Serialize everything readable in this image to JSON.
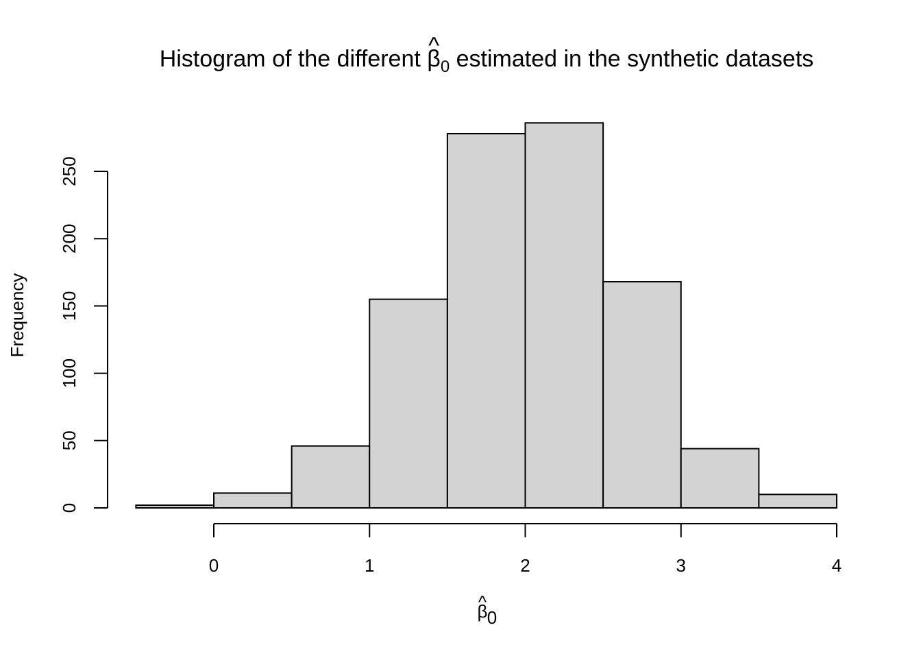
{
  "chart_data": {
    "type": "bar",
    "title": {
      "before": "Histogram of the different ",
      "symbol": "β",
      "hat": "^",
      "subscript": "0",
      "after": " estimated in the synthetic datasets"
    },
    "xlabel": {
      "symbol": "β",
      "hat": "^",
      "subscript": "0"
    },
    "ylabel": "Frequency",
    "bins": [
      {
        "start": -0.5,
        "end": 0.0,
        "count": 2
      },
      {
        "start": 0.0,
        "end": 0.5,
        "count": 11
      },
      {
        "start": 0.5,
        "end": 1.0,
        "count": 46
      },
      {
        "start": 1.0,
        "end": 1.5,
        "count": 155
      },
      {
        "start": 1.5,
        "end": 2.0,
        "count": 278
      },
      {
        "start": 2.0,
        "end": 2.5,
        "count": 286
      },
      {
        "start": 2.5,
        "end": 3.0,
        "count": 168
      },
      {
        "start": 3.0,
        "end": 3.5,
        "count": 44
      },
      {
        "start": 3.5,
        "end": 4.0,
        "count": 10
      }
    ],
    "xticks": [
      0,
      1,
      2,
      3,
      4
    ],
    "xtick_labels": [
      "0",
      "1",
      "2",
      "3",
      "4"
    ],
    "yticks": [
      0,
      50,
      100,
      150,
      200,
      250
    ],
    "ytick_labels": [
      "0",
      "50",
      "100",
      "150",
      "200",
      "250"
    ],
    "xlim": [
      -0.5,
      4.0
    ],
    "ylim": [
      0,
      286
    ],
    "bar_fill": "#d3d3d3",
    "bar_stroke": "#000000",
    "grid": false
  }
}
